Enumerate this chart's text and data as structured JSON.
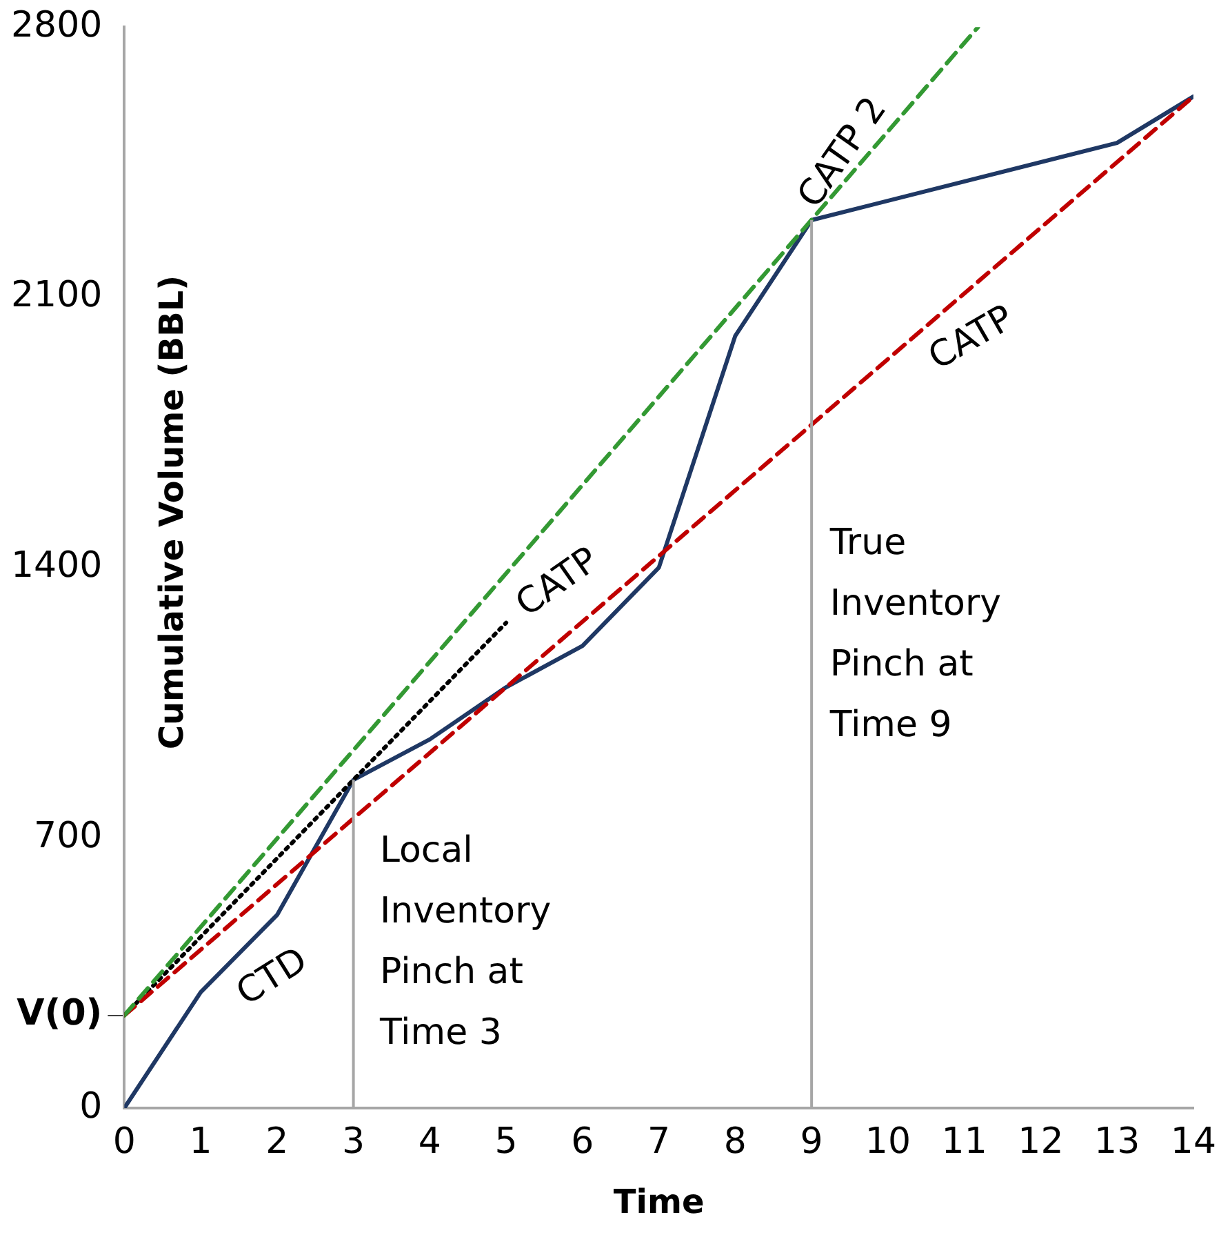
{
  "chart_data": {
    "type": "line",
    "xlabel": "Time",
    "ylabel": "Cumulative Volume (BBL)",
    "xlim": [
      0,
      14
    ],
    "xticks": [
      0,
      1,
      2,
      3,
      4,
      5,
      6,
      7,
      8,
      9,
      10,
      11,
      12,
      13,
      14
    ],
    "ylim": [
      0,
      2800
    ],
    "yticks": [
      0,
      {
        "value": 240,
        "label": "V(0)"
      },
      700,
      1400,
      2100,
      2800
    ],
    "grid": false,
    "legend": false,
    "marker": "none",
    "ref_lines": [
      {
        "axis": "x",
        "value": 3,
        "color": "#a6a6a6"
      },
      {
        "axis": "x",
        "value": 9,
        "color": "#a6a6a6"
      }
    ],
    "series": [
      {
        "color": "#339933",
        "x": [
          0,
          11.18
        ],
        "values": [
          240,
          2800
        ],
        "line_style": "dashed"
      },
      {
        "color": "#c00000",
        "x": [
          0,
          14
        ],
        "values": [
          240,
          2620
        ],
        "line_style": "dashed"
      },
      {
        "color": "#000000",
        "x": [
          0,
          5
        ],
        "values": [
          240,
          1257
        ],
        "line_style": "dotted"
      },
      {
        "color": "#1f3864",
        "x": [
          0,
          1,
          2,
          3,
          4,
          5,
          6,
          7,
          8,
          9,
          13,
          14
        ],
        "values": [
          0,
          300,
          500,
          850,
          955,
          1090,
          1197,
          1400,
          2000,
          2300,
          2500,
          2620
        ],
        "line_style": "solid"
      }
    ],
    "annotations": [
      "CTD",
      "CATP",
      "CATP",
      "CATP 2",
      "Local Inventory Pinch at Time 3",
      "True Inventory Pinch at Time 9"
    ]
  }
}
